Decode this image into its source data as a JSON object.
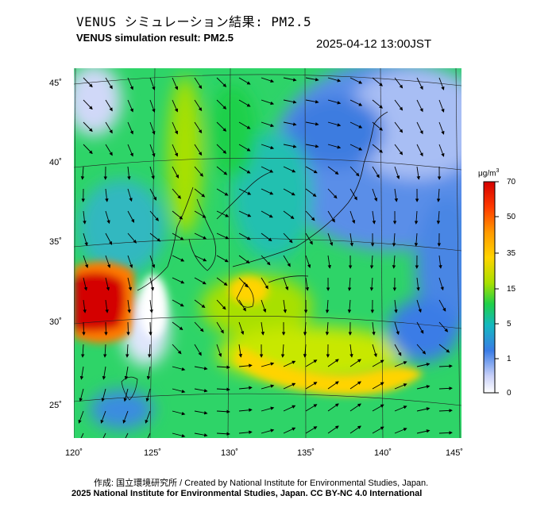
{
  "title_jp": "VENUS シミュレーション結果: PM2.5",
  "title_en": "VENUS simulation result: PM2.5",
  "timestamp": "2025-04-12 13:00JST",
  "lat_labels": [
    "45˚",
    "40˚",
    "35˚",
    "30˚",
    "25˚"
  ],
  "lon_labels": [
    "120˚",
    "125˚",
    "130˚",
    "135˚",
    "140˚",
    "145˚"
  ],
  "colorbar": {
    "unit_prefix": "μg/m",
    "unit_exp": "3",
    "labels": [
      "70",
      "50",
      "35",
      "15",
      "5",
      "1",
      "0"
    ],
    "colors": [
      "#d40000",
      "#ff7a00",
      "#ffd400",
      "#a8e000",
      "#1fd04a",
      "#14b8c0",
      "#3a7ce6",
      "#c8d0f8",
      "#ffffff"
    ]
  },
  "credit": "作成: 国立環境研究所 / Created by National Institute for Environmental Studies, Japan.",
  "copyright": "2025 National Institute for Environmental Studies, Japan. CC BY-NC 4.0 International"
}
